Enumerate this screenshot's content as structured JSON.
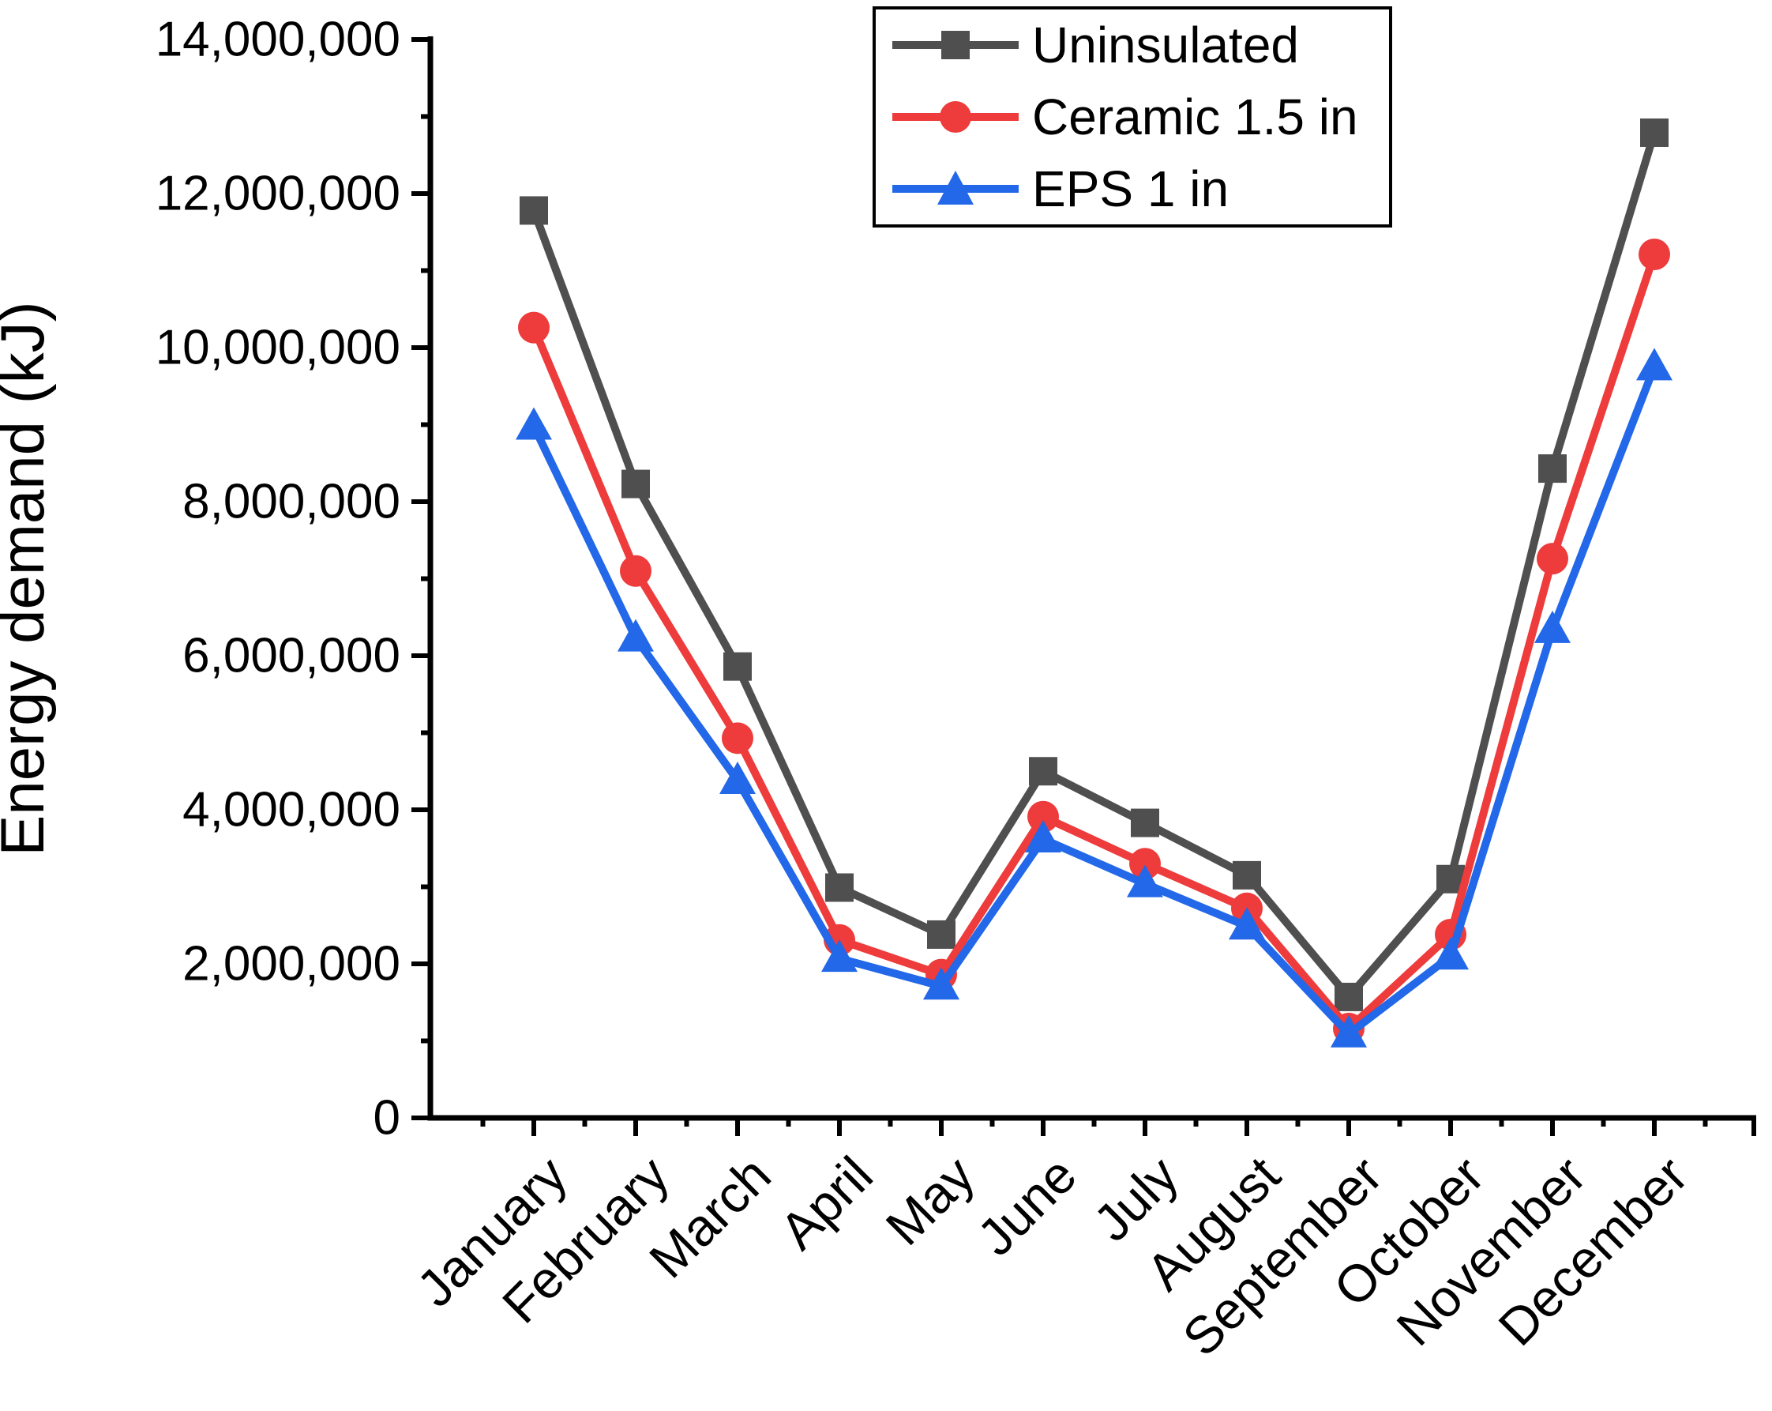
{
  "figure": {
    "background": "#ffffff"
  },
  "chart_data": {
    "type": "line",
    "title": "",
    "xlabel": "",
    "ylabel": "Energy demand (kJ)",
    "ylim": [
      0,
      14000000
    ],
    "ytick_step": 2000000,
    "y_minor_step": 1000000,
    "grid": false,
    "legend_position": "top-center-inside",
    "x_tick_label_rotation_deg": -45,
    "categories": [
      "January",
      "February",
      "March",
      "April",
      "May",
      "June",
      "July",
      "August",
      "September",
      "October",
      "November",
      "December"
    ],
    "series": [
      {
        "name": "Uninsulated",
        "color": "#4f4f4f",
        "marker": "square",
        "values": [
          11780000,
          8230000,
          5860000,
          2990000,
          2380000,
          4500000,
          3830000,
          3150000,
          1570000,
          3100000,
          8430000,
          12790000
        ]
      },
      {
        "name": "Ceramic 1.5 in",
        "color": "#ee3b3b",
        "marker": "circle",
        "values": [
          10260000,
          7100000,
          4930000,
          2310000,
          1860000,
          3910000,
          3300000,
          2720000,
          1160000,
          2380000,
          7260000,
          11210000
        ]
      },
      {
        "name": "EPS 1 in",
        "color": "#2268e8",
        "marker": "triangle",
        "values": [
          8980000,
          6230000,
          4380000,
          2070000,
          1710000,
          3620000,
          3040000,
          2490000,
          1090000,
          2100000,
          6340000,
          9750000
        ]
      }
    ]
  }
}
